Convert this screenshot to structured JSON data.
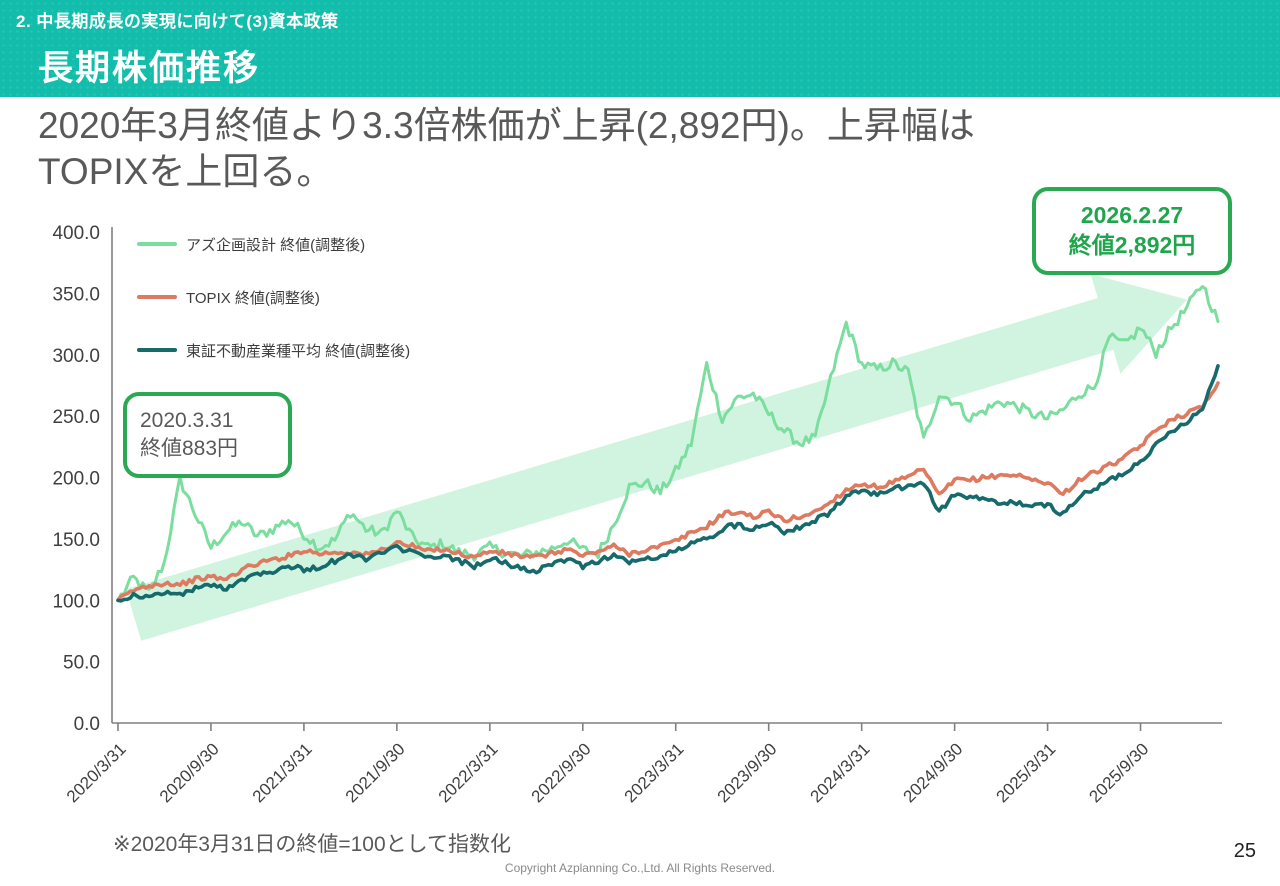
{
  "header": {
    "breadcrumb": "2. 中長期成長の実現に向けて(3)資本政策",
    "title": "長期株価推移"
  },
  "statement": {
    "line1": "2020年3月終値より3.3倍株価が上昇(2,892円)。上昇幅は",
    "line2": "TOPIXを上回る。"
  },
  "callouts": {
    "start": {
      "line1": "2020.3.31",
      "line2": "終値883円"
    },
    "end": {
      "line1": "2026.2.27",
      "line2": "終値2,892円"
    }
  },
  "footnote": "※2020年3月31日の終値=100として指数化",
  "copyright": "Copyright Azplanning Co.,Ltd. All Rights Reserved.",
  "page_number": "25",
  "colors": {
    "header_teal": "#12bdab",
    "callout_border_green": "#2ba852",
    "callout_text_green": "#1fa64d",
    "axis_gray": "#808080",
    "text_gray": "#595959",
    "trend_arrow_fill": "#cdf3dd"
  },
  "chart_data": {
    "type": "line",
    "title": "",
    "xlabel": "",
    "ylabel": "",
    "ylim": [
      0,
      400
    ],
    "y_tick_step": 50,
    "y_tick_labels": [
      "0.0",
      "50.0",
      "100.0",
      "150.0",
      "200.0",
      "250.0",
      "300.0",
      "350.0",
      "400.0"
    ],
    "x_tick_labels": [
      "2020/3/31",
      "2020/9/30",
      "2021/3/31",
      "2021/9/30",
      "2022/3/31",
      "2022/9/30",
      "2023/3/31",
      "2023/9/30",
      "2024/3/31",
      "2024/9/30",
      "2025/3/31",
      "2025/9/30"
    ],
    "x_months_start": "2020/3",
    "x_months_end": "2026/2",
    "grid": false,
    "legend_position": "top-left",
    "baseline_note": "2020/3/31 close = 100 (indexed)",
    "series": [
      {
        "name": "アズ企画設計 終値(調整後)",
        "color": "#7bde9e",
        "stroke_width": 3,
        "noise": 4.5,
        "values": [
          100,
          118,
          106,
          131,
          198,
          170,
          143,
          156,
          164,
          152,
          158,
          166,
          154,
          143,
          149,
          172,
          158,
          154,
          173,
          151,
          143,
          146,
          139,
          137,
          143,
          139,
          136,
          139,
          142,
          149,
          141,
          138,
          162,
          192,
          196,
          188,
          205,
          228,
          292,
          248,
          265,
          268,
          252,
          238,
          228,
          232,
          280,
          326,
          292,
          288,
          293,
          286,
          230,
          268,
          262,
          248,
          255,
          262,
          258,
          252,
          248,
          255,
          268,
          274,
          314,
          308,
          322,
          302,
          322,
          338,
          358,
          327
        ]
      },
      {
        "name": "TOPIX 終値(調整後)",
        "color": "#de7a60",
        "stroke_width": 3.6,
        "noise": 2.0,
        "values": [
          100,
          108,
          112,
          114,
          113,
          117,
          119,
          117,
          125,
          130,
          133,
          136,
          141,
          138,
          139,
          139,
          137,
          141,
          147,
          144,
          140,
          142,
          138,
          135,
          140,
          138,
          136,
          135,
          138,
          142,
          136,
          140,
          144,
          138,
          141,
          144,
          148,
          155,
          160,
          170,
          172,
          168,
          172,
          165,
          168,
          172,
          180,
          190,
          195,
          192,
          196,
          200,
          207,
          185,
          198,
          198,
          200,
          202,
          202,
          198,
          196,
          186,
          198,
          204,
          210,
          216,
          226,
          238,
          248,
          252,
          258,
          277
        ]
      },
      {
        "name": "東証不動産業種平均 終値(調整後)",
        "color": "#166a6c",
        "stroke_width": 3.6,
        "noise": 2.2,
        "values": [
          100,
          104,
          102,
          107,
          104,
          110,
          112,
          110,
          117,
          122,
          124,
          128,
          125,
          127,
          132,
          137,
          134,
          138,
          143,
          139,
          134,
          136,
          132,
          128,
          134,
          130,
          126,
          124,
          128,
          134,
          128,
          132,
          137,
          131,
          133,
          136,
          140,
          146,
          150,
          158,
          162,
          158,
          164,
          156,
          160,
          165,
          172,
          184,
          190,
          186,
          190,
          193,
          196,
          172,
          186,
          184,
          182,
          178,
          180,
          176,
          178,
          170,
          184,
          190,
          198,
          204,
          214,
          226,
          238,
          246,
          256,
          291
        ]
      }
    ],
    "annotations": {
      "trend_arrow": {
        "from_month": 1,
        "from_value": 88,
        "to_month": 69,
        "to_value": 345
      }
    }
  }
}
